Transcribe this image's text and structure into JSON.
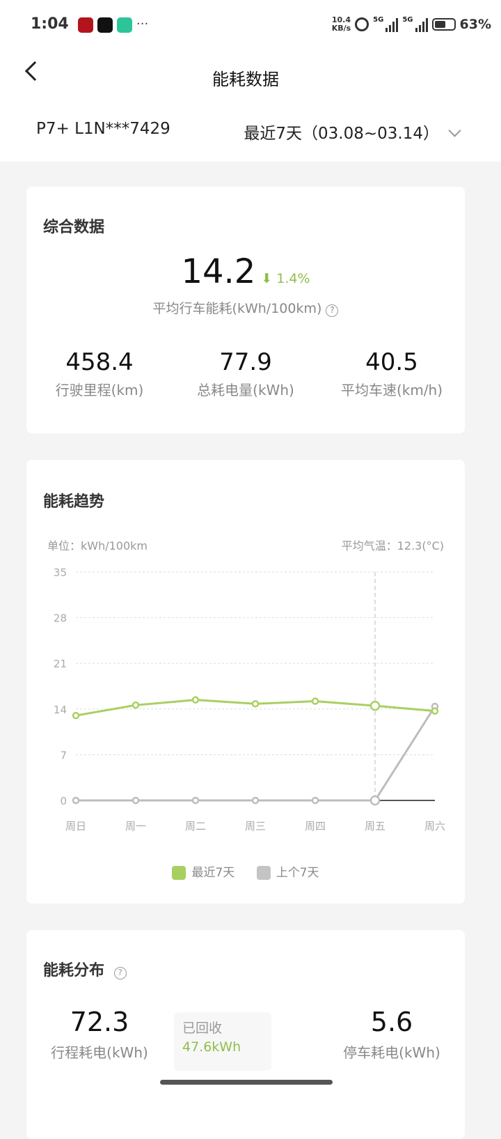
{
  "status_bar": {
    "time": "1:04",
    "more": "···",
    "net_speed": "10.4",
    "net_unit": "KB/s",
    "sig1": "5G",
    "sig2": "5G",
    "battery": "63%"
  },
  "header": {
    "title": "能耗数据",
    "vehicle": "P7+ L1N***7429",
    "range": "最近7天（03.08~03.14）"
  },
  "summary": {
    "title": "综合数据",
    "avg_value": "14.2",
    "change": "1.4%",
    "change_dir": "down",
    "avg_label": "平均行车能耗(kWh/100km)",
    "stats": [
      {
        "value": "458.4",
        "label": "行驶里程(km)"
      },
      {
        "value": "77.9",
        "label": "总耗电量(kWh)"
      },
      {
        "value": "40.5",
        "label": "平均车速(km/h)"
      }
    ]
  },
  "trend": {
    "title": "能耗趋势",
    "unit": "单位：kWh/100km",
    "temp": "平均气温：12.3(°C)",
    "legend": [
      "最近7天",
      "上个7天"
    ]
  },
  "chart_data": {
    "type": "line",
    "categories": [
      "周日",
      "周一",
      "周二",
      "周三",
      "周四",
      "周五",
      "周六"
    ],
    "yticks": [
      "0",
      "7",
      "14",
      "21",
      "28",
      "35"
    ],
    "ylim": [
      0,
      35
    ],
    "grid": true,
    "legend_placement": "bottom",
    "series": [
      {
        "name": "最近7天",
        "color": "#a8d061",
        "values": [
          13.0,
          14.6,
          15.4,
          14.8,
          15.2,
          14.5,
          13.7
        ]
      },
      {
        "name": "上个7天",
        "color": "#bdbdbd",
        "values": [
          0,
          0,
          0,
          0,
          0,
          0,
          14.4
        ]
      }
    ],
    "highlight_category": "周五"
  },
  "distribution": {
    "title": "能耗分布",
    "trip_value": "72.3",
    "trip_label": "行程耗电(kWh)",
    "recovered_label": "已回收",
    "recovered_value": "47.6kWh",
    "park_value": "5.6",
    "park_label": "停车耗电(kWh)"
  },
  "colors": {
    "accent": "#8fbf4a",
    "green_line": "#a8d061"
  }
}
